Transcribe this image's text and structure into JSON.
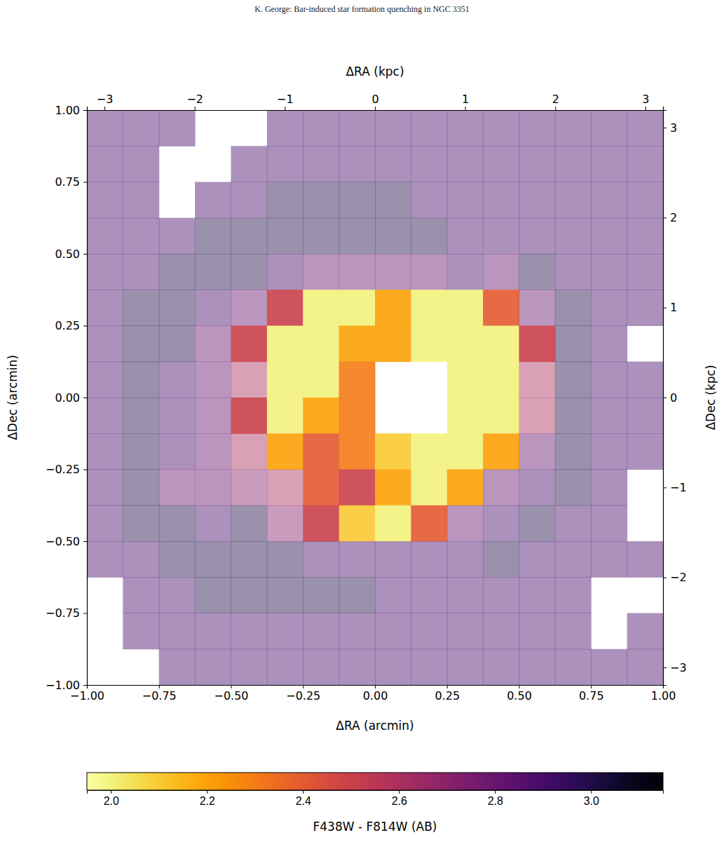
{
  "header": "K. George: Bar-induced star formation quenching in NGC 3351",
  "chart_data": {
    "type": "heatmap",
    "x_label": "ΔRA (arcmin)",
    "y_label": "ΔDec (arcmin)",
    "x2_label": "ΔRA (kpc)",
    "y2_label": "ΔDec (kpc)",
    "xlim": [
      -1,
      1
    ],
    "ylim": [
      -1,
      1
    ],
    "xticks": [
      {
        "value": -1,
        "label": "−1.00"
      },
      {
        "value": -0.75,
        "label": "−0.75"
      },
      {
        "value": -0.5,
        "label": "−0.50"
      },
      {
        "value": -0.25,
        "label": "−0.25"
      },
      {
        "value": 0,
        "label": "0.00"
      },
      {
        "value": 0.25,
        "label": "0.25"
      },
      {
        "value": 0.5,
        "label": "0.50"
      },
      {
        "value": 0.75,
        "label": "0.75"
      },
      {
        "value": 1,
        "label": "1.00"
      }
    ],
    "yticks": [
      {
        "value": -1,
        "label": "−1.00"
      },
      {
        "value": -0.75,
        "label": "−0.75"
      },
      {
        "value": -0.5,
        "label": "−0.50"
      },
      {
        "value": -0.25,
        "label": "−0.25"
      },
      {
        "value": 0,
        "label": "0.00"
      },
      {
        "value": 0.25,
        "label": "0.25"
      },
      {
        "value": 0.5,
        "label": "0.50"
      },
      {
        "value": 0.75,
        "label": "0.75"
      },
      {
        "value": 1,
        "label": "1.00"
      }
    ],
    "x2lim": [
      -3.195,
      3.195
    ],
    "x2ticks": [
      {
        "value": -3,
        "label": "−3"
      },
      {
        "value": -2,
        "label": "−2"
      },
      {
        "value": -1,
        "label": "−1"
      },
      0,
      1,
      2,
      3
    ],
    "y2lim": [
      -3.195,
      3.195
    ],
    "y2ticks": [
      {
        "value": -3,
        "label": "−3"
      },
      {
        "value": -2,
        "label": "−2"
      },
      {
        "value": -1,
        "label": "−1"
      },
      0,
      1,
      2,
      3
    ],
    "x": [
      -0.9375,
      -0.8125,
      -0.6875,
      -0.5625,
      -0.4375,
      -0.3125,
      -0.1875,
      -0.0625,
      0.0625,
      0.1875,
      0.3125,
      0.4375,
      0.5625,
      0.6875,
      0.8125,
      0.9375
    ],
    "y": [
      0.9375,
      0.8125,
      0.6875,
      0.5625,
      0.4375,
      0.3125,
      0.1875,
      0.0625,
      -0.0625,
      -0.1875,
      -0.3125,
      -0.4375,
      -0.5625,
      -0.6875,
      -0.8125,
      -0.9375
    ],
    "cells": [
      [
        2.9,
        2.9,
        2.9,
        null,
        null,
        2.9,
        2.9,
        2.9,
        2.9,
        2.9,
        2.9,
        2.9,
        2.9,
        2.9,
        2.9,
        2.9
      ],
      [
        2.9,
        2.9,
        null,
        null,
        2.9,
        2.9,
        2.9,
        2.9,
        2.9,
        2.9,
        2.9,
        2.9,
        2.9,
        2.9,
        2.9,
        2.9
      ],
      [
        2.9,
        2.9,
        null,
        2.9,
        2.9,
        3.0,
        3.0,
        3.0,
        3.0,
        2.9,
        2.9,
        2.9,
        2.9,
        2.9,
        2.9,
        2.9
      ],
      [
        2.9,
        2.9,
        2.9,
        3.0,
        3.0,
        3.0,
        3.0,
        3.0,
        3.0,
        3.0,
        2.9,
        2.9,
        2.9,
        2.9,
        2.9,
        2.9
      ],
      [
        2.9,
        2.9,
        3.0,
        3.0,
        3.0,
        2.9,
        2.8,
        2.8,
        2.8,
        2.8,
        2.9,
        2.8,
        3.0,
        2.9,
        2.9,
        2.9
      ],
      [
        2.9,
        3.0,
        3.0,
        2.9,
        2.8,
        2.5,
        2.0,
        2.0,
        2.2,
        2.0,
        2.0,
        2.4,
        2.8,
        3.0,
        2.9,
        2.9
      ],
      [
        2.9,
        3.0,
        3.0,
        2.8,
        2.5,
        2.0,
        2.0,
        2.2,
        2.2,
        2.0,
        2.0,
        2.0,
        2.5,
        3.0,
        2.9,
        null
      ],
      [
        2.9,
        3.0,
        2.9,
        2.8,
        2.6,
        2.0,
        2.0,
        2.3,
        null,
        null,
        2.0,
        2.0,
        2.6,
        3.0,
        2.9,
        2.9
      ],
      [
        2.9,
        3.0,
        2.9,
        2.8,
        2.5,
        2.0,
        2.2,
        2.3,
        null,
        null,
        2.0,
        2.0,
        2.6,
        3.0,
        2.9,
        2.9
      ],
      [
        2.9,
        3.0,
        2.9,
        2.8,
        2.6,
        2.2,
        2.4,
        2.3,
        2.1,
        2.0,
        2.0,
        2.2,
        2.8,
        3.0,
        2.9,
        2.9
      ],
      [
        2.9,
        3.0,
        2.8,
        2.8,
        2.7,
        2.6,
        2.4,
        2.5,
        2.2,
        2.0,
        2.2,
        2.8,
        2.9,
        3.0,
        2.9,
        null
      ],
      [
        2.9,
        3.0,
        3.0,
        2.9,
        3.0,
        2.7,
        2.5,
        2.1,
        2.0,
        2.4,
        2.8,
        2.9,
        3.0,
        2.9,
        2.9,
        null
      ],
      [
        2.9,
        2.9,
        3.0,
        3.0,
        3.0,
        3.0,
        2.9,
        2.9,
        2.9,
        2.9,
        2.9,
        3.0,
        2.9,
        2.9,
        2.9,
        2.9
      ],
      [
        null,
        2.9,
        2.9,
        3.0,
        3.0,
        3.0,
        3.0,
        3.0,
        2.9,
        2.9,
        2.9,
        2.9,
        2.9,
        2.9,
        null,
        null
      ],
      [
        null,
        2.9,
        2.9,
        2.9,
        2.9,
        2.9,
        2.9,
        2.9,
        2.9,
        2.9,
        2.9,
        2.9,
        2.9,
        2.9,
        null,
        2.9
      ],
      [
        null,
        null,
        2.9,
        2.9,
        2.9,
        2.9,
        2.9,
        2.9,
        2.9,
        2.9,
        2.9,
        2.9,
        2.9,
        2.9,
        2.9,
        2.9
      ]
    ],
    "colorbar": {
      "label": "F438W - F814W (AB)",
      "range": [
        1.95,
        3.15
      ],
      "color": "inferno_r",
      "ticks": [
        {
          "value": 2.0,
          "label": "2.0"
        },
        {
          "value": 2.2,
          "label": "2.2"
        },
        {
          "value": 2.4,
          "label": "2.4"
        },
        {
          "value": 2.6,
          "label": "2.6"
        },
        {
          "value": 2.8,
          "label": "2.8"
        },
        {
          "value": 3.0,
          "label": "3.0"
        }
      ]
    }
  }
}
